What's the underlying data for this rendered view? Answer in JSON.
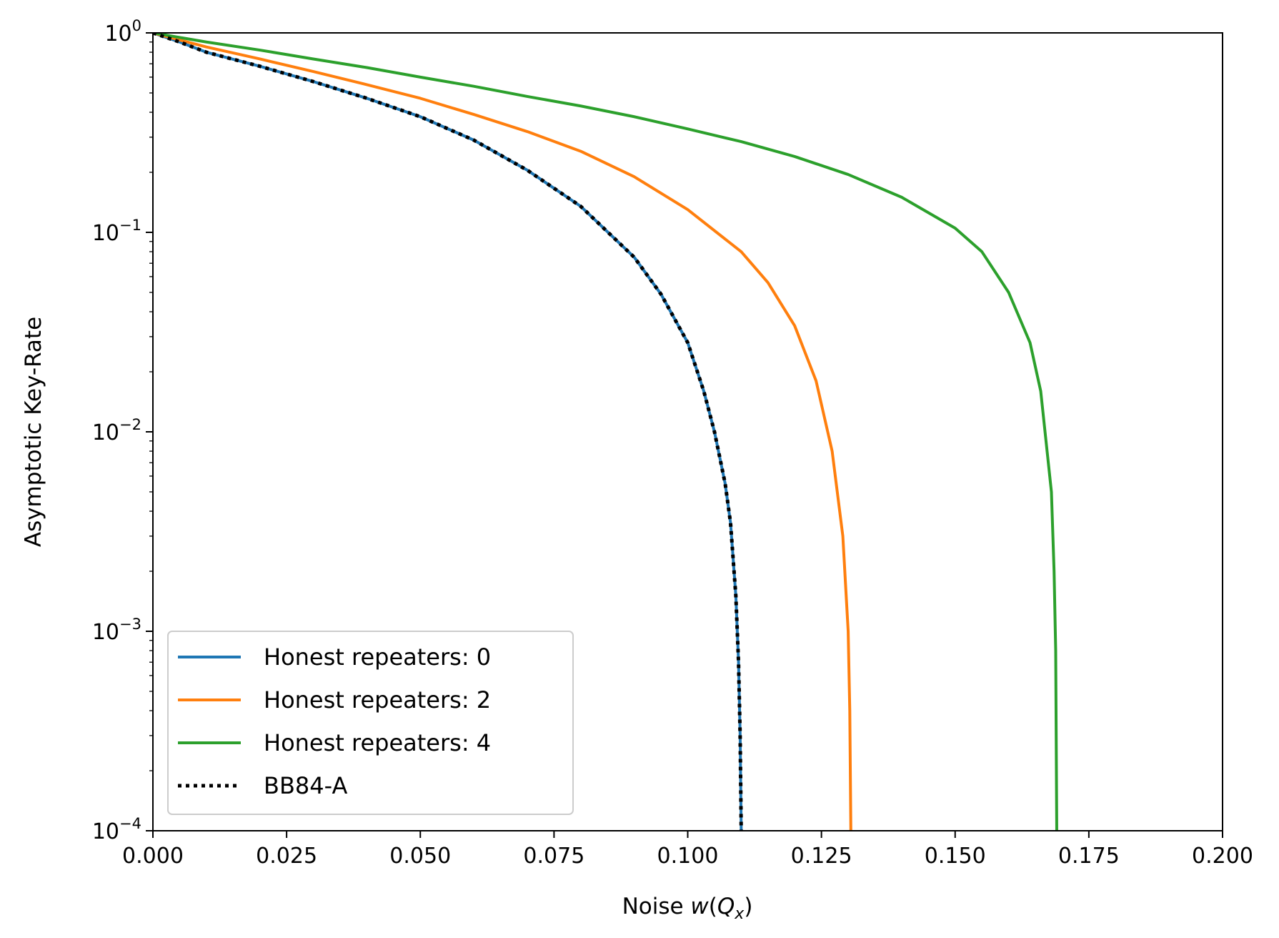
{
  "chart_data": {
    "type": "line",
    "xlabel_text": "Noise ",
    "xlabel_math": {
      "base": "w",
      "open": "(",
      "var": "Q",
      "sub": "x",
      "close": ")"
    },
    "ylabel": "Asymptotic Key-Rate",
    "xlim": [
      0.0,
      0.2
    ],
    "ylim": [
      0.0001,
      1
    ],
    "y_scale": "log",
    "x_ticks": [
      0.0,
      0.025,
      0.05,
      0.075,
      0.1,
      0.125,
      0.15,
      0.175,
      0.2
    ],
    "x_tick_labels": [
      "0.000",
      "0.025",
      "0.050",
      "0.075",
      "0.100",
      "0.125",
      "0.150",
      "0.175",
      "0.200"
    ],
    "y_ticks": [
      {
        "value": 1,
        "base": "10",
        "exp": "0"
      },
      {
        "value": 0.1,
        "base": "10",
        "exp": "−1"
      },
      {
        "value": 0.01,
        "base": "10",
        "exp": "−2"
      },
      {
        "value": 0.001,
        "base": "10",
        "exp": "−3"
      },
      {
        "value": 0.0001,
        "base": "10",
        "exp": "−4"
      }
    ],
    "grid": false,
    "legend_position": "lower-left",
    "series": [
      {
        "name": "Honest repeaters: 0",
        "color": "#1f77b4",
        "style": "solid",
        "x": [
          0.0,
          0.005,
          0.01,
          0.02,
          0.03,
          0.04,
          0.05,
          0.06,
          0.07,
          0.08,
          0.09,
          0.095,
          0.1,
          0.103,
          0.105,
          0.107,
          0.108,
          0.109,
          0.1095,
          0.1098,
          0.11
        ],
        "y": [
          1.0,
          0.9,
          0.8,
          0.68,
          0.57,
          0.47,
          0.38,
          0.29,
          0.205,
          0.135,
          0.075,
          0.049,
          0.028,
          0.016,
          0.01,
          0.0055,
          0.0035,
          0.0015,
          0.0007,
          0.0003,
          0.0001
        ]
      },
      {
        "name": "Honest repeaters: 2",
        "color": "#ff7f0e",
        "style": "solid",
        "x": [
          0.0,
          0.01,
          0.02,
          0.03,
          0.04,
          0.05,
          0.06,
          0.07,
          0.08,
          0.09,
          0.1,
          0.11,
          0.115,
          0.12,
          0.124,
          0.127,
          0.129,
          0.13,
          0.1303,
          0.1305
        ],
        "y": [
          1.0,
          0.85,
          0.74,
          0.64,
          0.55,
          0.47,
          0.39,
          0.32,
          0.255,
          0.19,
          0.13,
          0.08,
          0.056,
          0.034,
          0.018,
          0.008,
          0.003,
          0.001,
          0.0004,
          0.0001
        ]
      },
      {
        "name": "Honest repeaters: 4",
        "color": "#2ca02c",
        "style": "solid",
        "x": [
          0.0,
          0.01,
          0.02,
          0.03,
          0.04,
          0.05,
          0.06,
          0.07,
          0.08,
          0.09,
          0.1,
          0.11,
          0.12,
          0.13,
          0.14,
          0.15,
          0.155,
          0.16,
          0.164,
          0.166,
          0.168,
          0.1685,
          0.1688,
          0.169
        ],
        "y": [
          1.0,
          0.9,
          0.82,
          0.74,
          0.67,
          0.6,
          0.54,
          0.48,
          0.43,
          0.38,
          0.33,
          0.285,
          0.24,
          0.195,
          0.15,
          0.105,
          0.08,
          0.05,
          0.028,
          0.016,
          0.005,
          0.002,
          0.0008,
          0.0001
        ]
      },
      {
        "name": "BB84-A",
        "color": "#000000",
        "style": "dotted",
        "x": [
          0.0,
          0.005,
          0.01,
          0.02,
          0.03,
          0.04,
          0.05,
          0.06,
          0.07,
          0.08,
          0.09,
          0.095,
          0.1,
          0.103,
          0.105,
          0.107,
          0.108,
          0.109,
          0.1095,
          0.1098,
          0.11
        ],
        "y": [
          1.0,
          0.9,
          0.8,
          0.68,
          0.57,
          0.47,
          0.38,
          0.29,
          0.205,
          0.135,
          0.075,
          0.049,
          0.028,
          0.016,
          0.01,
          0.0055,
          0.0035,
          0.0015,
          0.0007,
          0.0003,
          0.0001
        ]
      }
    ]
  }
}
